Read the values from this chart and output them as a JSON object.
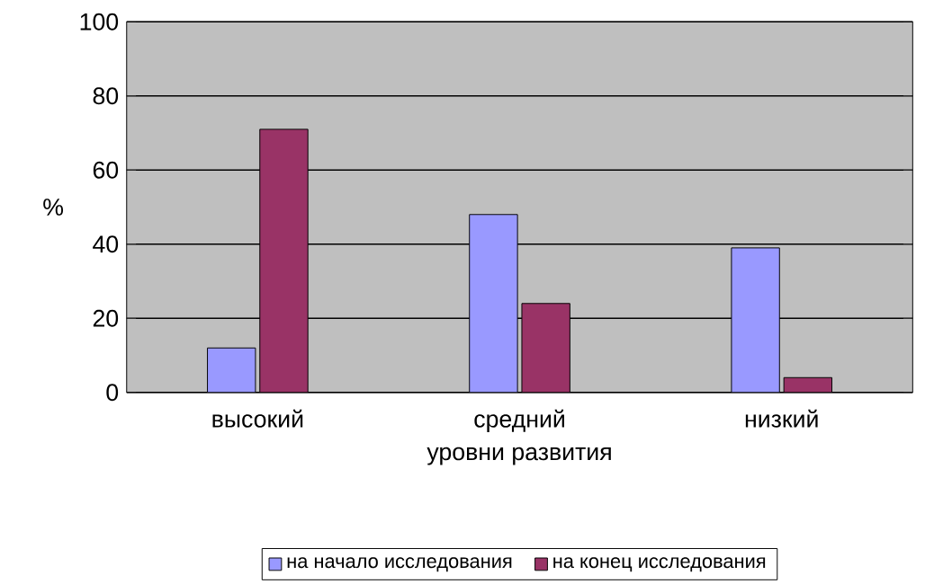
{
  "chart_data": {
    "type": "bar",
    "xlabel": "уровни развития",
    "ylabel": "%",
    "categories": [
      "высокий",
      "средний",
      "низкий"
    ],
    "series": [
      {
        "name": "на начало исследования",
        "color": "#9999ff",
        "values": [
          12,
          48,
          39
        ]
      },
      {
        "name": "на конец исследования",
        "color": "#993366",
        "values": [
          71,
          24,
          4
        ]
      }
    ],
    "ylim": [
      0,
      100
    ],
    "yticks": [
      0,
      20,
      40,
      60,
      80,
      100
    ],
    "grid": "y",
    "legend": "bottom"
  }
}
